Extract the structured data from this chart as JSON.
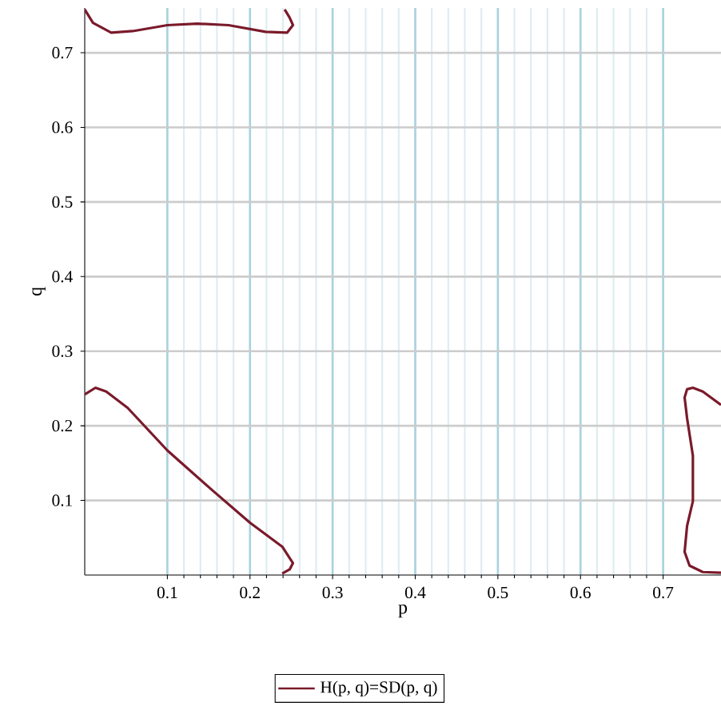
{
  "chart_data": {
    "type": "line",
    "xlabel": "p",
    "ylabel": "q",
    "xlim": [
      0,
      0.77
    ],
    "ylim": [
      0,
      0.76
    ],
    "xticks": [
      0.1,
      0.2,
      0.3,
      0.4,
      0.5,
      0.6,
      0.7
    ],
    "yticks": [
      0.1,
      0.2,
      0.3,
      0.4,
      0.5,
      0.6,
      0.7
    ],
    "grid": true,
    "legend": "bottom",
    "series": [
      {
        "name": "H(p, q)=SD(p, q)",
        "color": "#7a1a2a",
        "x": [
          0,
          0.013,
          0.026,
          0.052,
          0.1,
          0.155,
          0.2,
          0.239,
          0.252,
          0.248,
          0.239,
          null,
          0,
          0.01,
          0.032,
          0.058,
          0.1,
          0.136,
          0.174,
          0.219,
          0.245,
          0.252,
          0.248,
          0.242,
          null,
          0.77,
          0.748,
          0.732,
          0.726,
          0.729,
          0.736,
          0.736,
          0.729,
          0.726,
          0.729,
          0.736,
          0.748,
          0.77
        ],
        "values": [
          0.242,
          0.251,
          0.246,
          0.224,
          0.167,
          0.113,
          0.07,
          0.038,
          0.016,
          0.0075,
          0.002,
          null,
          0.758,
          0.74,
          0.727,
          0.729,
          0.737,
          0.739,
          0.737,
          0.728,
          0.727,
          0.737,
          0.747,
          0.758,
          null,
          0.003,
          0.004,
          0.0125,
          0.031,
          0.066,
          0.099,
          0.16,
          0.21,
          0.238,
          0.249,
          0.251,
          0.246,
          0.228
        ]
      }
    ]
  }
}
